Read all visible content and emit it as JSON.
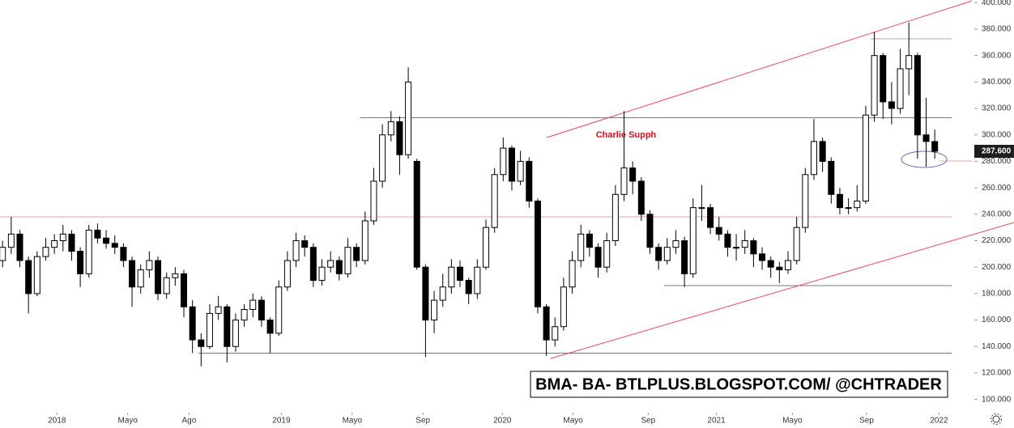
{
  "chart_data": {
    "type": "candlestick",
    "annotation": "Charlie Supph",
    "watermark": "BMA- BA- BTLPLUS.BLOGSPOT.COM/ @CHTRADER",
    "up_color": "#ffffff",
    "down_color": "#000000",
    "wick_color": "#000000",
    "last_price": {
      "value": 287600,
      "label": "287.600"
    },
    "xlim": [
      -0.3,
      112.3
    ],
    "xticks": [
      {
        "value": 6.3,
        "label": "2018"
      },
      {
        "value": 14.5,
        "label": "Mayo"
      },
      {
        "value": 21.6,
        "label": "Ago"
      },
      {
        "value": 32.3,
        "label": "2019"
      },
      {
        "value": 40.5,
        "label": "Mayo"
      },
      {
        "value": 48.7,
        "label": "Sep"
      },
      {
        "value": 57.9,
        "label": "2020"
      },
      {
        "value": 66.1,
        "label": "Mayo"
      },
      {
        "value": 74.8,
        "label": "Sep"
      },
      {
        "value": 82.7,
        "label": "2021"
      },
      {
        "value": 91.5,
        "label": "Mayo"
      },
      {
        "value": 100.1,
        "label": "Sep"
      },
      {
        "value": 108.5,
        "label": "2022"
      }
    ],
    "ylim": [
      90000,
      402000
    ],
    "yticks": [
      {
        "value": 100000,
        "label": "100.000"
      },
      {
        "value": 120000,
        "label": "120.000"
      },
      {
        "value": 140000,
        "label": "140.000"
      },
      {
        "value": 160000,
        "label": "160.000"
      },
      {
        "value": 180000,
        "label": "180.000"
      },
      {
        "value": 200000,
        "label": "200.000"
      },
      {
        "value": 220000,
        "label": "220.000"
      },
      {
        "value": 240000,
        "label": "240.000"
      },
      {
        "value": 260000,
        "label": "260.000"
      },
      {
        "value": 280000,
        "label": "280.000"
      },
      {
        "value": 300000,
        "label": "300.000"
      },
      {
        "value": 320000,
        "label": "320.000"
      },
      {
        "value": 340000,
        "label": "340.000"
      },
      {
        "value": 360000,
        "label": "360.000"
      },
      {
        "value": 380000,
        "label": "380.000"
      },
      {
        "value": 400000,
        "label": "400.000"
      }
    ],
    "open": [
      205000,
      215000,
      225000,
      205000,
      180000,
      208000,
      215000,
      220000,
      225000,
      212000,
      195000,
      228000,
      222000,
      218000,
      215000,
      205000,
      185000,
      198000,
      205000,
      180000,
      192000,
      195000,
      170000,
      145000,
      140000,
      165000,
      170000,
      140000,
      160000,
      168000,
      175000,
      160000,
      150000,
      185000,
      205000,
      220000,
      215000,
      190000,
      200000,
      205000,
      195000,
      215000,
      205000,
      235000,
      265000,
      300000,
      310000,
      285000,
      280000,
      200000,
      160000,
      175000,
      185000,
      200000,
      190000,
      180000,
      200000,
      230000,
      270000,
      290000,
      265000,
      280000,
      250000,
      170000,
      145000,
      155000,
      185000,
      205000,
      225000,
      215000,
      200000,
      220000,
      255000,
      275000,
      265000,
      240000,
      215000,
      205000,
      215000,
      220000,
      195000,
      245000,
      245000,
      230000,
      225000,
      215000,
      215000,
      220000,
      210000,
      205000,
      200000,
      198000,
      205000,
      230000,
      270000,
      295000,
      280000,
      255000,
      245000,
      245000,
      250000,
      315000,
      360000,
      325000,
      320000,
      350000,
      360000,
      300000,
      295000
    ],
    "high": [
      220000,
      238000,
      228000,
      208000,
      212000,
      222000,
      225000,
      232000,
      228000,
      215000,
      232000,
      233000,
      228000,
      224000,
      218000,
      208000,
      202000,
      212000,
      208000,
      196000,
      200000,
      198000,
      175000,
      150000,
      172000,
      178000,
      172000,
      165000,
      172000,
      180000,
      178000,
      162000,
      190000,
      212000,
      226000,
      224000,
      218000,
      206000,
      212000,
      208000,
      222000,
      218000,
      242000,
      275000,
      308000,
      318000,
      314000,
      351000,
      282000,
      202000,
      182000,
      195000,
      206000,
      205000,
      192000,
      206000,
      236000,
      275000,
      298000,
      292000,
      288000,
      283000,
      252000,
      172000,
      162000,
      192000,
      212000,
      232000,
      228000,
      218000,
      226000,
      262000,
      318000,
      280000,
      268000,
      243000,
      218000,
      222000,
      228000,
      223000,
      252000,
      262000,
      248000,
      238000,
      228000,
      225000,
      228000,
      222000,
      215000,
      208000,
      204000,
      212000,
      238000,
      275000,
      312000,
      298000,
      283000,
      260000,
      252000,
      262000,
      322000,
      378000,
      362000,
      340000,
      365000,
      385000,
      362000,
      328000,
      304000
    ],
    "low": [
      200000,
      210000,
      200000,
      165000,
      178000,
      205000,
      210000,
      212000,
      205000,
      185000,
      192000,
      218000,
      214000,
      210000,
      200000,
      170000,
      180000,
      192000,
      175000,
      176000,
      186000,
      162000,
      135000,
      125000,
      138000,
      160000,
      128000,
      136000,
      155000,
      162000,
      155000,
      135000,
      148000,
      182000,
      200000,
      208000,
      185000,
      186000,
      196000,
      190000,
      192000,
      200000,
      202000,
      232000,
      260000,
      295000,
      270000,
      282000,
      198000,
      132000,
      150000,
      170000,
      180000,
      185000,
      172000,
      176000,
      198000,
      226000,
      265000,
      258000,
      262000,
      245000,
      165000,
      133000,
      140000,
      152000,
      180000,
      200000,
      208000,
      192000,
      196000,
      216000,
      250000,
      255000,
      235000,
      210000,
      198000,
      202000,
      210000,
      185000,
      192000,
      235000,
      225000,
      220000,
      208000,
      205000,
      210000,
      200000,
      198000,
      192000,
      188000,
      195000,
      202000,
      226000,
      266000,
      272000,
      248000,
      240000,
      240000,
      242000,
      248000,
      310000,
      312000,
      308000,
      316000,
      330000,
      282000,
      276000,
      282000
    ],
    "close": [
      215000,
      225000,
      205000,
      180000,
      208000,
      215000,
      220000,
      225000,
      212000,
      195000,
      228000,
      222000,
      218000,
      215000,
      205000,
      185000,
      198000,
      205000,
      180000,
      192000,
      195000,
      170000,
      145000,
      140000,
      165000,
      170000,
      140000,
      160000,
      168000,
      175000,
      160000,
      150000,
      185000,
      205000,
      220000,
      215000,
      190000,
      200000,
      205000,
      195000,
      215000,
      205000,
      235000,
      265000,
      300000,
      310000,
      285000,
      340000,
      200000,
      160000,
      175000,
      185000,
      200000,
      190000,
      180000,
      200000,
      230000,
      270000,
      290000,
      265000,
      280000,
      250000,
      170000,
      145000,
      155000,
      185000,
      205000,
      225000,
      215000,
      200000,
      220000,
      255000,
      275000,
      265000,
      240000,
      215000,
      205000,
      215000,
      220000,
      195000,
      245000,
      245000,
      230000,
      225000,
      215000,
      215000,
      220000,
      210000,
      205000,
      200000,
      198000,
      205000,
      230000,
      270000,
      295000,
      280000,
      255000,
      245000,
      245000,
      250000,
      315000,
      360000,
      325000,
      320000,
      350000,
      360000,
      300000,
      295000,
      287600
    ]
  }
}
